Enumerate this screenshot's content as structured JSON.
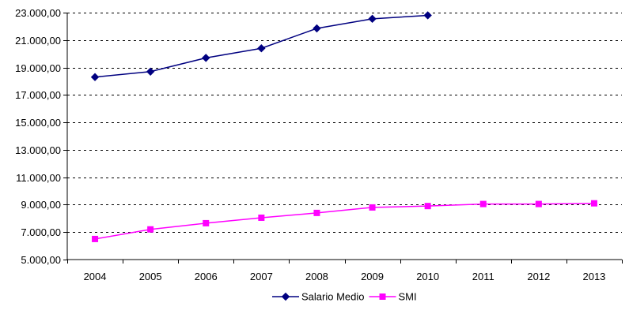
{
  "chart_data": {
    "type": "line",
    "title": "",
    "xlabel": "",
    "ylabel": "",
    "categories": [
      "2004",
      "2005",
      "2006",
      "2007",
      "2008",
      "2009",
      "2010",
      "2011",
      "2012",
      "2013"
    ],
    "y_ticks": [
      "5.000,00",
      "7.000,00",
      "9.000,00",
      "11.000,00",
      "13.000,00",
      "15.000,00",
      "17.000,00",
      "19.000,00",
      "21.000,00",
      "23.000,00"
    ],
    "ylim": [
      5000,
      23000
    ],
    "ytick_step": 2000,
    "grid": true,
    "legend_position": "bottom",
    "series": [
      {
        "name": "Salario Medio",
        "color": "#000080",
        "marker": "diamond",
        "values": [
          18300,
          18700,
          19700,
          20400,
          21850,
          22550,
          22800,
          null,
          null,
          null
        ]
      },
      {
        "name": "SMI",
        "color": "#ff00ff",
        "marker": "square",
        "values": [
          6500,
          7200,
          7650,
          8050,
          8400,
          8800,
          8900,
          9050,
          9050,
          9100
        ]
      }
    ]
  }
}
